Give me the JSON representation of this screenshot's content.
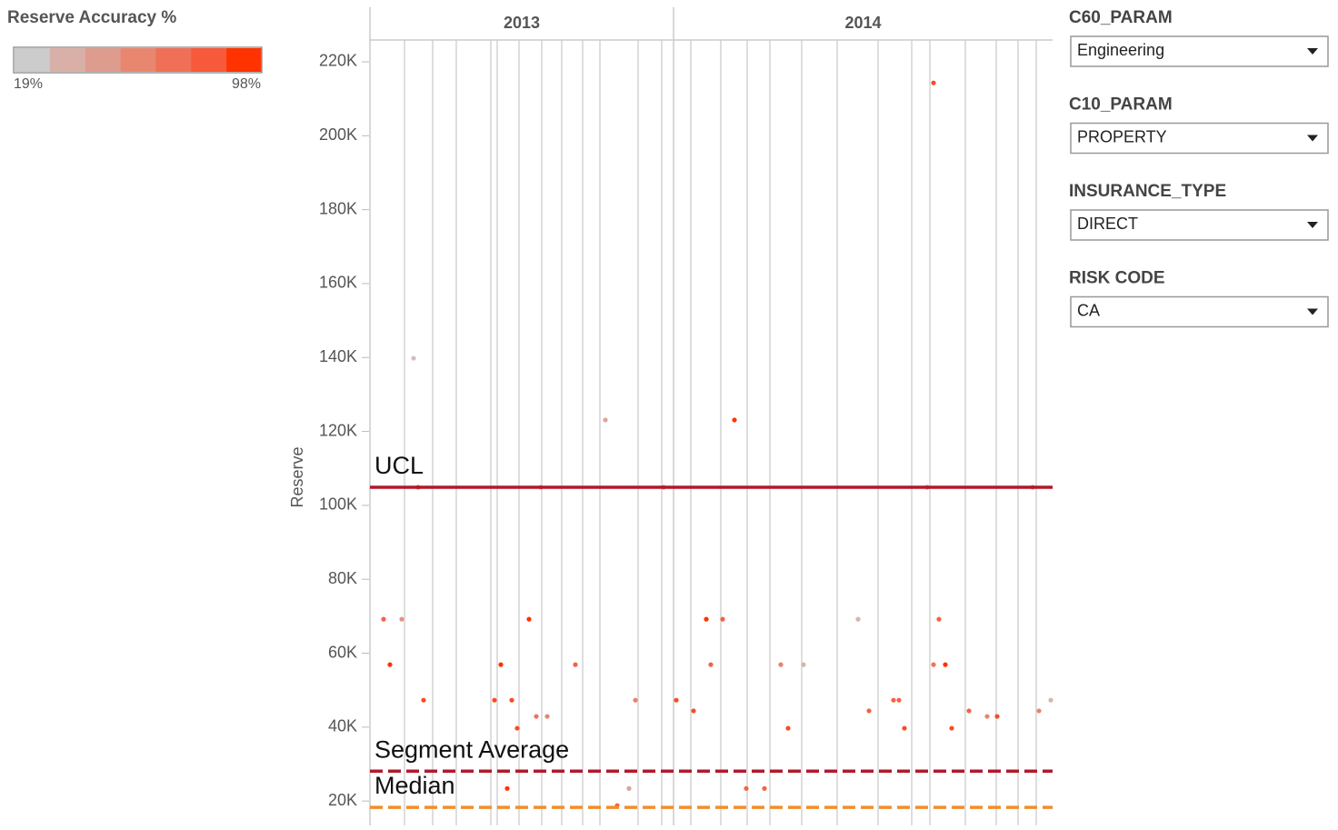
{
  "legend": {
    "title": "Reserve Accuracy %",
    "min": {
      "value": 19,
      "label": "19%"
    },
    "max": {
      "value": 98,
      "label": "98%"
    },
    "colors": [
      "#cccccc",
      "#d9b0a8",
      "#dd9c8d",
      "#e88670",
      "#ef7056",
      "#f75a3a",
      "#ff3300"
    ]
  },
  "filters": [
    {
      "label": "C60_PARAM",
      "value": "Engineering"
    },
    {
      "label": "C10_PARAM",
      "value": "PROPERTY"
    },
    {
      "label": "INSURANCE_TYPE",
      "value": "DIRECT"
    },
    {
      "label": "RISK CODE",
      "value": "CA"
    }
  ],
  "chart_data": {
    "type": "scatter",
    "y_label": "Reserve",
    "facets": [
      {
        "label": "2013",
        "range": [
          0,
          334
        ]
      },
      {
        "label": "2014",
        "range": [
          334,
          751
        ]
      }
    ],
    "xlim": [
      0,
      751
    ],
    "xgrid": [
      38,
      69,
      95,
      133,
      140,
      164,
      189,
      211,
      234,
      253,
      295,
      321,
      353,
      386,
      415,
      440,
      475,
      514,
      559,
      596,
      616,
      655,
      689,
      713,
      733
    ],
    "ylim": [
      13400,
      225900
    ],
    "yticks": [
      {
        "value": 20000,
        "label": "20K"
      },
      {
        "value": 40000,
        "label": "40K"
      },
      {
        "value": 60000,
        "label": "60K"
      },
      {
        "value": 80000,
        "label": "80K"
      },
      {
        "value": 100000,
        "label": "100K"
      },
      {
        "value": 120000,
        "label": "120K"
      },
      {
        "value": 140000,
        "label": "140K"
      },
      {
        "value": 160000,
        "label": "160K"
      },
      {
        "value": 180000,
        "label": "180K"
      },
      {
        "value": 200000,
        "label": "200K"
      },
      {
        "value": 220000,
        "label": "220K"
      }
    ],
    "series": [
      {
        "x": [
          15,
          22,
          35,
          48,
          53,
          59,
          137,
          144,
          151,
          156,
          162,
          175,
          183,
          188,
          195,
          226,
          259,
          272,
          285,
          292,
          323,
          337,
          356,
          370,
          375,
          388,
          401,
          414,
          434,
          452,
          460,
          477,
          537,
          549,
          576,
          582,
          588,
          613,
          620,
          620,
          626,
          633,
          640,
          659,
          679,
          690,
          729,
          736,
          749
        ],
        "values": [
          69200,
          56900,
          69200,
          139800,
          104900,
          47300,
          47300,
          56900,
          23400,
          47300,
          39700,
          69200,
          42900,
          104900,
          42900,
          56900,
          123100,
          18800,
          23400,
          47300,
          104900,
          47300,
          44400,
          69200,
          56900,
          69200,
          123100,
          23400,
          23400,
          56900,
          39700,
          56900,
          69200,
          44400,
          47300,
          47300,
          39700,
          104900,
          214300,
          56900,
          69200,
          56900,
          39700,
          44400,
          42900,
          42900,
          104900,
          44400,
          47300
        ],
        "accuracy": [
          80,
          98,
          50,
          25,
          80,
          90,
          90,
          98,
          98,
          90,
          90,
          98,
          70,
          60,
          60,
          80,
          40,
          80,
          40,
          60,
          60,
          90,
          90,
          98,
          80,
          80,
          98,
          80,
          80,
          60,
          90,
          30,
          30,
          80,
          80,
          80,
          90,
          60,
          90,
          70,
          80,
          98,
          90,
          80,
          60,
          90,
          60,
          60,
          30
        ]
      }
    ],
    "reference_lines": [
      {
        "label": "UCL",
        "value": 104900,
        "color": "#b2182b",
        "dashed": false
      },
      {
        "label": "Segment Average",
        "value": 28100,
        "color": "#b2182b",
        "dashed": true
      },
      {
        "label": "Median",
        "value": 18300,
        "color": "#f28e2b",
        "dashed": true
      }
    ]
  }
}
